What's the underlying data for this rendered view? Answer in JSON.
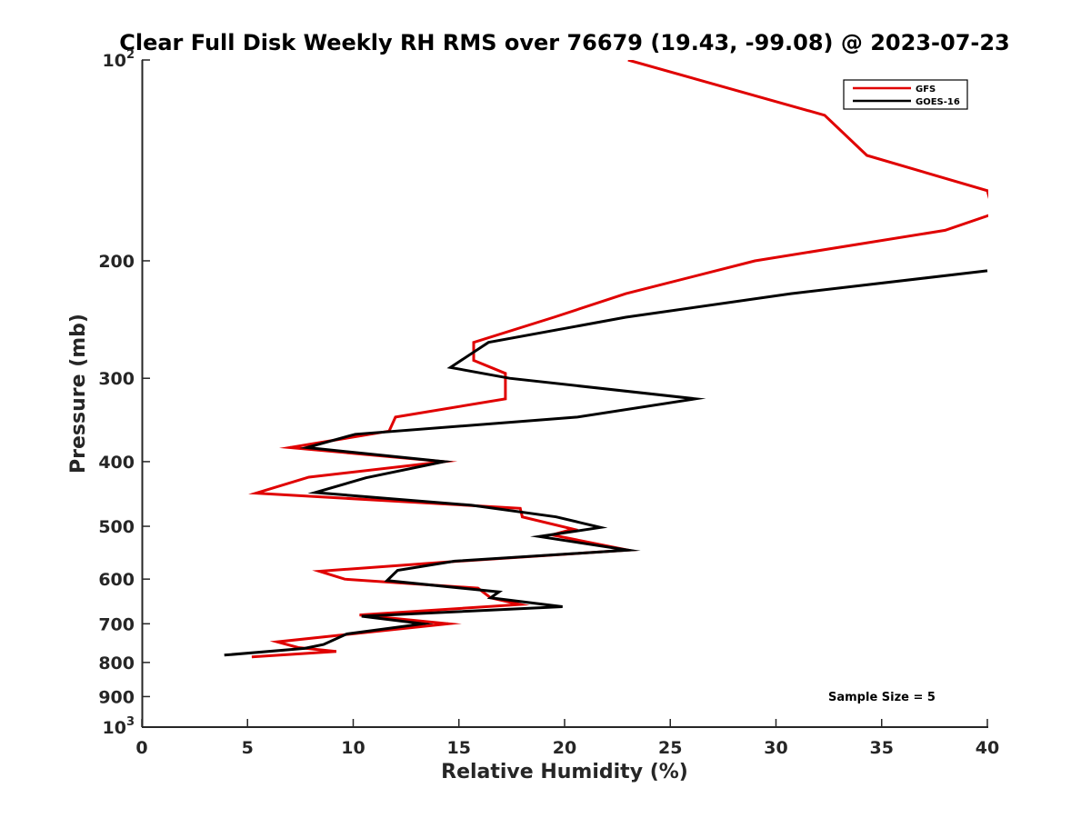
{
  "chart_data": {
    "type": "line",
    "title": "Clear Full Disk Weekly RH RMS over 76679 (19.43, -99.08) @ 2023-07-23",
    "xlabel": "Relative Humidity (%)",
    "ylabel": "Pressure (mb)",
    "xlim": [
      0,
      40
    ],
    "ylim": [
      100,
      1000
    ],
    "y_scale": "log",
    "y_reversed": true,
    "x_ticks": [
      "0",
      "5",
      "10",
      "15",
      "20",
      "25",
      "30",
      "35",
      "40"
    ],
    "y_ticks": [
      {
        "value": 100,
        "base": "10",
        "exp": "2"
      },
      {
        "value": 200,
        "base": "200",
        "exp": ""
      },
      {
        "value": 300,
        "base": "300",
        "exp": ""
      },
      {
        "value": 400,
        "base": "400",
        "exp": ""
      },
      {
        "value": 500,
        "base": "500",
        "exp": ""
      },
      {
        "value": 600,
        "base": "600",
        "exp": ""
      },
      {
        "value": 700,
        "base": "700",
        "exp": ""
      },
      {
        "value": 800,
        "base": "800",
        "exp": ""
      },
      {
        "value": 900,
        "base": "900",
        "exp": ""
      },
      {
        "value": 1000,
        "base": "10",
        "exp": "3"
      }
    ],
    "legend_position": "top-right",
    "grid": false,
    "annotation": "Sample Size = 5",
    "series": [
      {
        "name": "GFS",
        "color": "#e00000",
        "points": [
          [
            23.0,
            100
          ],
          [
            32.3,
            121
          ],
          [
            34.3,
            139
          ],
          [
            40.0,
            157
          ],
          [
            40.3,
            170
          ],
          [
            38.0,
            180
          ],
          [
            29.0,
            200
          ],
          [
            22.9,
            224
          ],
          [
            19.5,
            243
          ],
          [
            15.7,
            265
          ],
          [
            15.7,
            282
          ],
          [
            17.2,
            295
          ],
          [
            17.2,
            322
          ],
          [
            12.0,
            343
          ],
          [
            11.7,
            360
          ],
          [
            7.0,
            381
          ],
          [
            14.3,
            400
          ],
          [
            7.9,
            422
          ],
          [
            5.4,
            446
          ],
          [
            17.9,
            470
          ],
          [
            18.0,
            484
          ],
          [
            20.4,
            505
          ],
          [
            19.4,
            515
          ],
          [
            23.0,
            543
          ],
          [
            15.0,
            564
          ],
          [
            8.4,
            584
          ],
          [
            9.6,
            600
          ],
          [
            15.9,
            619
          ],
          [
            16.5,
            640
          ],
          [
            17.9,
            655
          ],
          [
            10.3,
            679
          ],
          [
            14.5,
            700
          ],
          [
            6.4,
            745
          ],
          [
            7.4,
            760
          ],
          [
            9.2,
            770
          ],
          [
            5.2,
            785
          ]
        ]
      },
      {
        "name": "GOES-16",
        "color": "#000000",
        "points": [
          [
            40.0,
            207
          ],
          [
            30.7,
            224
          ],
          [
            22.9,
            243
          ],
          [
            16.4,
            265
          ],
          [
            14.6,
            289
          ],
          [
            17.4,
            300
          ],
          [
            26.2,
            322
          ],
          [
            20.6,
            343
          ],
          [
            10.1,
            364
          ],
          [
            7.8,
            381
          ],
          [
            14.3,
            400
          ],
          [
            10.6,
            423
          ],
          [
            8.2,
            445
          ],
          [
            15.6,
            465
          ],
          [
            19.6,
            484
          ],
          [
            21.7,
            502
          ],
          [
            18.8,
            518
          ],
          [
            23.0,
            543
          ],
          [
            14.8,
            564
          ],
          [
            12.1,
            582
          ],
          [
            11.6,
            603
          ],
          [
            16.9,
            627
          ],
          [
            16.5,
            640
          ],
          [
            19.9,
            660
          ],
          [
            10.4,
            682
          ],
          [
            13.3,
            700
          ],
          [
            9.7,
            725
          ],
          [
            8.6,
            752
          ],
          [
            7.7,
            762
          ],
          [
            3.9,
            780
          ]
        ]
      }
    ]
  }
}
